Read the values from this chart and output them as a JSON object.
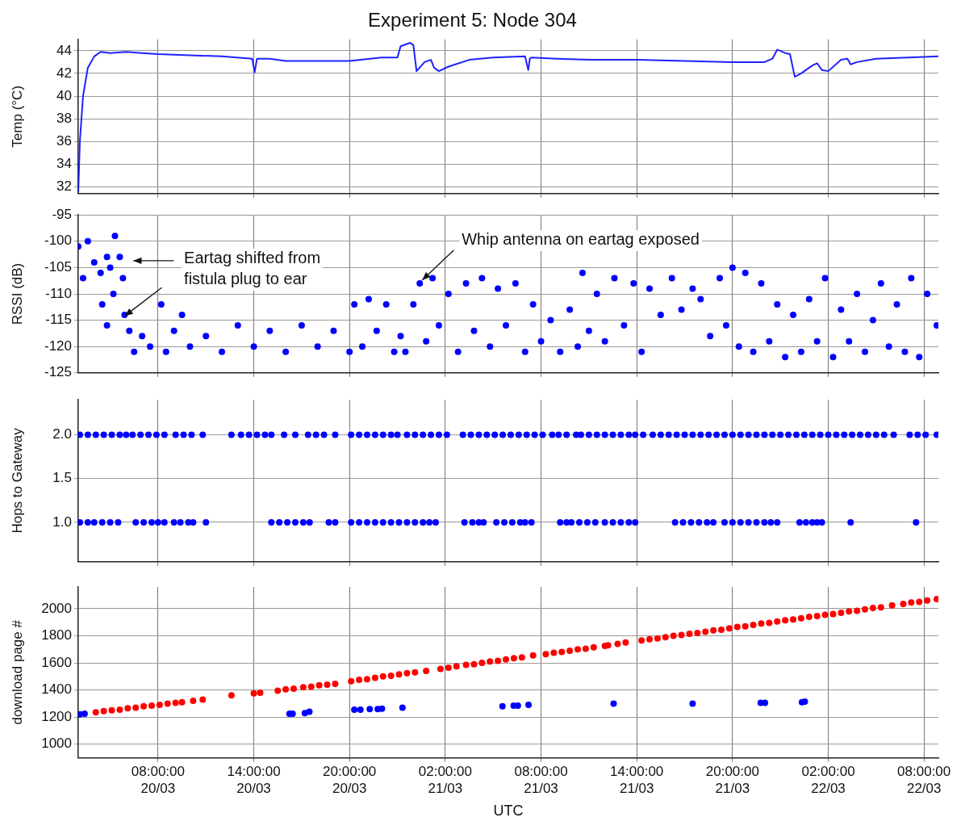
{
  "chart_data": [
    {
      "type": "line",
      "title": "Experiment 5: Node 304",
      "ylabel": "Temp (°C)",
      "xlim": [
        "--03-20T03:00",
        "--03-22T08:54"
      ],
      "xticks": [
        "--03-20T08:00",
        "--03-20T14:00",
        "--03-20T20:00",
        "--03-21T02:00",
        "--03-21T08:00",
        "--03-21T14:00",
        "--03-21T20:00",
        "--03-22T02:00",
        "--03-22T08:00"
      ],
      "ylim": [
        31.4,
        45
      ],
      "yticks": [
        32,
        34,
        36,
        38,
        40,
        42,
        44
      ],
      "grid": true,
      "tick_labels": "y",
      "marker": "none",
      "series": [
        {
          "color": "#2020ff",
          "x": [
            "--03-20T03:00",
            "--03-20T03:06",
            "--03-20T03:18",
            "--03-20T03:36",
            "--03-20T04:00",
            "--03-20T04:24",
            "--03-20T05:00",
            "--03-20T06:00",
            "--03-20T07:00",
            "--03-20T08:00",
            "--03-20T10:00",
            "--03-20T12:00",
            "--03-20T13:54",
            "--03-20T14:03",
            "--03-20T14:12",
            "--03-20T15:00",
            "--03-20T16:00",
            "--03-20T18:00",
            "--03-20T20:00",
            "--03-20T22:00",
            "--03-20T23:00",
            "--03-20T23:12",
            "--03-20T23:48",
            "--03-21T00:00",
            "--03-21T00:12",
            "--03-21T00:42",
            "--03-21T01:06",
            "--03-21T01:18",
            "--03-21T01:36",
            "--03-21T02:12",
            "--03-21T03:30",
            "--03-21T05:00",
            "--03-21T07:00",
            "--03-21T07:12",
            "--03-21T07:18",
            "--03-21T07:24",
            "--03-21T09:00",
            "--03-21T11:00",
            "--03-21T14:00",
            "--03-21T17:00",
            "--03-21T20:00",
            "--03-21T22:00",
            "--03-21T22:30",
            "--03-21T22:48",
            "--03-21T23:18",
            "--03-21T23:36",
            "--03-21T23:54",
            "--03-22T00:18",
            "--03-22T01:00",
            "--03-22T01:18",
            "--03-22T01:36",
            "--03-22T02:00",
            "--03-22T02:48",
            "--03-22T03:12",
            "--03-22T03:24",
            "--03-22T03:48",
            "--03-22T05:00",
            "--03-22T07:00",
            "--03-22T08:54"
          ],
          "values": [
            31.5,
            36,
            40,
            42.5,
            43.5,
            43.9,
            43.8,
            43.9,
            43.8,
            43.7,
            43.6,
            43.5,
            43.3,
            42.1,
            43.3,
            43.3,
            43.1,
            43.1,
            43.1,
            43.4,
            43.4,
            44.4,
            44.7,
            44.5,
            42.2,
            43.0,
            43.2,
            42.5,
            42.2,
            42.6,
            43.2,
            43.4,
            43.5,
            42.3,
            43.3,
            43.4,
            43.3,
            43.2,
            43.2,
            43.1,
            43.0,
            43.0,
            43.3,
            44.1,
            43.8,
            43.7,
            41.7,
            42.0,
            42.7,
            42.9,
            42.3,
            42.2,
            43.2,
            43.3,
            42.8,
            43.0,
            43.3,
            43.4,
            43.5
          ]
        }
      ]
    },
    {
      "type": "scatter",
      "ylabel": "RSSI (dB)",
      "xlim": [
        "--03-20T03:00",
        "--03-22T08:54"
      ],
      "xticks": [
        "--03-20T08:00",
        "--03-20T14:00",
        "--03-20T20:00",
        "--03-21T02:00",
        "--03-21T08:00",
        "--03-21T14:00",
        "--03-21T20:00",
        "--03-22T02:00",
        "--03-22T08:00"
      ],
      "ylim": [
        -125,
        -95
      ],
      "yticks": [
        -125,
        -120,
        -115,
        -110,
        -105,
        -100,
        -95
      ],
      "grid": true,
      "tick_labels": "y",
      "marker": "circle",
      "annotations": [
        "Eartag shifted from fistula plug to ear",
        {
          "text": "Whip antenna on eartag exposed",
          "x": "--03-21T00:24",
          "y": -108
        }
      ],
      "series": [
        {
          "color": "#0000ff",
          "x": [
            "--03-20T03:00",
            "--03-20T03:18",
            "--03-20T03:36",
            "--03-20T04:00",
            "--03-20T04:24",
            "--03-20T04:48",
            "--03-20T05:00",
            "--03-20T05:18",
            "--03-20T05:36",
            "--03-20T05:48",
            "--03-20T04:30",
            "--03-20T04:48",
            "--03-20T05:12",
            "--03-20T05:54",
            "--03-20T06:12",
            "--03-20T06:30",
            "--03-20T07:00",
            "--03-20T07:30",
            "--03-20T08:12",
            "--03-20T08:30",
            "--03-20T09:00",
            "--03-20T09:30",
            "--03-20T10:00",
            "--03-20T11:00",
            "--03-20T12:00",
            "--03-20T13:00",
            "--03-20T14:00",
            "--03-20T15:00",
            "--03-20T16:00",
            "--03-20T17:00",
            "--03-20T18:00",
            "--03-20T19:00",
            "--03-20T20:00",
            "--03-20T20:18",
            "--03-20T20:48",
            "--03-20T21:12",
            "--03-20T21:42",
            "--03-20T22:18",
            "--03-20T22:48",
            "--03-20T23:12",
            "--03-20T23:30",
            "--03-21T00:00",
            "--03-21T00:24",
            "--03-21T00:48",
            "--03-21T01:12",
            "--03-21T01:36",
            "--03-21T02:12",
            "--03-21T02:48",
            "--03-21T03:18",
            "--03-21T03:48",
            "--03-21T04:18",
            "--03-21T04:48",
            "--03-21T05:18",
            "--03-21T05:48",
            "--03-21T06:24",
            "--03-21T07:00",
            "--03-21T07:30",
            "--03-21T08:00",
            "--03-21T08:36",
            "--03-21T09:12",
            "--03-21T09:48",
            "--03-21T10:18",
            "--03-21T10:36",
            "--03-21T11:00",
            "--03-21T11:30",
            "--03-21T12:00",
            "--03-21T12:36",
            "--03-21T13:12",
            "--03-21T13:48",
            "--03-21T14:18",
            "--03-21T14:48",
            "--03-21T15:30",
            "--03-21T16:12",
            "--03-21T16:48",
            "--03-21T17:30",
            "--03-21T18:00",
            "--03-21T18:36",
            "--03-21T19:12",
            "--03-21T19:36",
            "--03-21T20:00",
            "--03-21T20:24",
            "--03-21T20:48",
            "--03-21T21:18",
            "--03-21T21:48",
            "--03-21T22:18",
            "--03-21T22:48",
            "--03-21T23:18",
            "--03-21T23:48",
            "--03-22T00:18",
            "--03-22T00:48",
            "--03-22T01:18",
            "--03-22T01:48",
            "--03-22T02:18",
            "--03-22T02:48",
            "--03-22T03:18",
            "--03-22T03:48",
            "--03-22T04:18",
            "--03-22T04:48",
            "--03-22T05:18",
            "--03-22T05:48",
            "--03-22T06:18",
            "--03-22T06:48",
            "--03-22T07:12",
            "--03-22T07:42",
            "--03-22T08:12",
            "--03-22T08:48"
          ],
          "values": [
            -101,
            -107,
            -100,
            -104,
            -106,
            -103,
            -105,
            -99,
            -103,
            -107,
            -112,
            -116,
            -110,
            -114,
            -117,
            -121,
            -118,
            -120,
            -112,
            -121,
            -117,
            -114,
            -120,
            -118,
            -121,
            -116,
            -120,
            -117,
            -121,
            -116,
            -120,
            -117,
            -121,
            -112,
            -120,
            -111,
            -117,
            -112,
            -121,
            -118,
            -121,
            -112,
            -108,
            -119,
            -107,
            -116,
            -110,
            -121,
            -108,
            -117,
            -107,
            -120,
            -109,
            -116,
            -108,
            -121,
            -112,
            -119,
            -115,
            -121,
            -113,
            -120,
            -106,
            -117,
            -110,
            -119,
            -107,
            -116,
            -108,
            -121,
            -109,
            -114,
            -107,
            -113,
            -109,
            -111,
            -118,
            -107,
            -116,
            -105,
            -120,
            -106,
            -121,
            -108,
            -119,
            -112,
            -122,
            -114,
            -121,
            -111,
            -119,
            -107,
            -122,
            -113,
            -119,
            -110,
            -121,
            -115,
            -108,
            -120,
            -112,
            -121,
            -107,
            -122,
            -110,
            -116
          ]
        }
      ]
    },
    {
      "type": "scatter",
      "ylabel": "Hops to Gateway",
      "xlim": [
        "--03-20T03:00",
        "--03-22T08:54"
      ],
      "xticks": [
        "--03-20T08:00",
        "--03-20T14:00",
        "--03-20T20:00",
        "--03-21T02:00",
        "--03-21T08:00",
        "--03-21T14:00",
        "--03-21T20:00",
        "--03-22T02:00",
        "--03-22T08:00"
      ],
      "ylim": [
        0.55,
        2.4
      ],
      "yticks": [
        {
          "value": 1,
          "label": "1.0"
        },
        {
          "value": 1.5,
          "label": "1.5"
        },
        {
          "value": 2,
          "label": "2.0"
        }
      ],
      "grid": true,
      "tick_labels": "y",
      "marker": "circle",
      "series": [
        {
          "color": "#0000ff",
          "x": [
            "--03-20T03:06",
            "--03-20T03:36",
            "--03-20T04:06",
            "--03-20T04:36",
            "--03-20T05:06",
            "--03-20T05:36",
            "--03-20T06:00",
            "--03-20T06:24",
            "--03-20T06:54",
            "--03-20T07:24",
            "--03-20T07:54",
            "--03-20T08:24",
            "--03-20T09:06",
            "--03-20T09:36",
            "--03-20T10:06",
            "--03-20T10:48",
            "--03-20T12:36",
            "--03-20T13:12",
            "--03-20T13:42",
            "--03-20T14:12",
            "--03-20T14:42",
            "--03-20T15:06",
            "--03-20T15:54",
            "--03-20T16:36",
            "--03-20T17:24",
            "--03-20T17:54",
            "--03-20T18:24",
            "--03-20T19:06",
            "--03-20T20:06",
            "--03-20T20:36",
            "--03-20T21:06",
            "--03-20T21:36",
            "--03-20T22:06",
            "--03-20T22:36",
            "--03-20T23:00",
            "--03-20T23:36",
            "--03-21T00:06",
            "--03-21T00:36",
            "--03-21T01:06",
            "--03-21T01:36",
            "--03-21T02:06",
            "--03-21T03:06",
            "--03-21T03:36",
            "--03-21T04:06",
            "--03-21T04:36",
            "--03-21T05:06",
            "--03-21T05:36",
            "--03-21T06:06",
            "--03-21T06:36",
            "--03-21T07:06",
            "--03-21T07:36",
            "--03-21T08:06",
            "--03-21T08:42",
            "--03-21T09:06",
            "--03-21T09:36",
            "--03-21T10:12",
            "--03-21T10:30",
            "--03-21T11:00",
            "--03-21T11:30",
            "--03-21T12:00",
            "--03-21T12:30",
            "--03-21T13:00",
            "--03-21T13:30",
            "--03-21T13:54",
            "--03-21T14:24",
            "--03-21T15:00",
            "--03-21T15:30",
            "--03-21T16:00",
            "--03-21T16:30",
            "--03-21T17:00",
            "--03-21T17:30",
            "--03-21T18:00",
            "--03-21T18:30",
            "--03-21T19:00",
            "--03-21T19:30",
            "--03-21T20:00",
            "--03-21T20:30",
            "--03-21T21:00",
            "--03-21T21:30",
            "--03-21T22:00",
            "--03-21T22:30",
            "--03-21T23:00",
            "--03-21T23:30",
            "--03-22T00:00",
            "--03-22T00:30",
            "--03-22T01:00",
            "--03-22T01:30",
            "--03-22T02:00",
            "--03-22T02:30",
            "--03-22T03:00",
            "--03-22T03:30",
            "--03-22T04:00",
            "--03-22T04:30",
            "--03-22T05:00",
            "--03-22T05:30",
            "--03-22T06:06",
            "--03-22T07:06",
            "--03-22T07:36",
            "--03-22T08:06",
            "--03-22T08:48"
          ],
          "values": [
            2,
            2,
            2,
            2,
            2,
            2,
            2,
            2,
            2,
            2,
            2,
            2,
            2,
            2,
            2,
            2,
            2,
            2,
            2,
            2,
            2,
            2,
            2,
            2,
            2,
            2,
            2,
            2,
            2,
            2,
            2,
            2,
            2,
            2,
            2,
            2,
            2,
            2,
            2,
            2,
            2,
            2,
            2,
            2,
            2,
            2,
            2,
            2,
            2,
            2,
            2,
            2,
            2,
            2,
            2,
            2,
            2,
            2,
            2,
            2,
            2,
            2,
            2,
            2,
            2,
            2,
            2,
            2,
            2,
            2,
            2,
            2,
            2,
            2,
            2,
            2,
            2,
            2,
            2,
            2,
            2,
            2,
            2,
            2,
            2,
            2,
            2,
            2,
            2,
            2,
            2,
            2,
            2,
            2,
            2,
            2,
            2,
            2,
            2,
            2
          ]
        },
        {
          "color": "#0000ff",
          "x": [
            "--03-20T03:06",
            "--03-20T03:36",
            "--03-20T04:00",
            "--03-20T04:30",
            "--03-20T05:00",
            "--03-20T05:30",
            "--03-20T06:36",
            "--03-20T07:06",
            "--03-20T07:36",
            "--03-20T08:00",
            "--03-20T08:24",
            "--03-20T09:00",
            "--03-20T09:24",
            "--03-20T09:54",
            "--03-20T10:12",
            "--03-20T11:00",
            "--03-20T15:06",
            "--03-20T15:36",
            "--03-20T16:06",
            "--03-20T16:36",
            "--03-20T17:06",
            "--03-20T17:30",
            "--03-20T18:42",
            "--03-20T19:06",
            "--03-20T20:06",
            "--03-20T20:36",
            "--03-20T21:06",
            "--03-20T21:36",
            "--03-20T22:06",
            "--03-20T22:36",
            "--03-20T23:06",
            "--03-20T23:36",
            "--03-21T00:06",
            "--03-21T00:36",
            "--03-21T01:00",
            "--03-21T01:24",
            "--03-21T03:12",
            "--03-21T03:42",
            "--03-21T04:06",
            "--03-21T04:24",
            "--03-21T05:12",
            "--03-21T05:42",
            "--03-21T06:12",
            "--03-21T06:42",
            "--03-21T07:00",
            "--03-21T07:24",
            "--03-21T09:12",
            "--03-21T09:36",
            "--03-21T09:54",
            "--03-21T10:24",
            "--03-21T10:54",
            "--03-21T11:24",
            "--03-21T12:00",
            "--03-21T12:30",
            "--03-21T13:00",
            "--03-21T13:30",
            "--03-21T13:54",
            "--03-21T16:24",
            "--03-21T16:54",
            "--03-21T17:24",
            "--03-21T17:54",
            "--03-21T18:24",
            "--03-21T18:48",
            "--03-21T19:30",
            "--03-21T20:00",
            "--03-21T20:30",
            "--03-21T21:00",
            "--03-21T21:30",
            "--03-21T22:00",
            "--03-21T22:24",
            "--03-21T22:48",
            "--03-22T00:12",
            "--03-22T00:36",
            "--03-22T01:00",
            "--03-22T01:18",
            "--03-22T01:36",
            "--03-22T03:24",
            "--03-22T07:30"
          ],
          "values": [
            1,
            1,
            1,
            1,
            1,
            1,
            1,
            1,
            1,
            1,
            1,
            1,
            1,
            1,
            1,
            1,
            1,
            1,
            1,
            1,
            1,
            1,
            1,
            1,
            1,
            1,
            1,
            1,
            1,
            1,
            1,
            1,
            1,
            1,
            1,
            1,
            1,
            1,
            1,
            1,
            1,
            1,
            1,
            1,
            1,
            1,
            1,
            1,
            1,
            1,
            1,
            1,
            1,
            1,
            1,
            1,
            1,
            1,
            1,
            1,
            1,
            1,
            1,
            1,
            1,
            1,
            1,
            1,
            1,
            1,
            1,
            1,
            1,
            1,
            1,
            1,
            1,
            1
          ]
        }
      ]
    },
    {
      "type": "scatter",
      "xlabel": "UTC",
      "ylabel": "download page #",
      "xlim": [
        "--03-20T03:00",
        "--03-22T08:54"
      ],
      "xticks": [
        {
          "value": "--03-20T08:00",
          "label": "08:00:00 20/03"
        },
        {
          "value": "--03-20T14:00",
          "label": "14:00:00 20/03"
        },
        {
          "value": "--03-20T20:00",
          "label": "20:00:00 20/03"
        },
        {
          "value": "--03-21T02:00",
          "label": "02:00:00 21/03"
        },
        {
          "value": "--03-21T08:00",
          "label": "08:00:00 21/03"
        },
        {
          "value": "--03-21T14:00",
          "label": "14:00:00 21/03"
        },
        {
          "value": "--03-21T20:00",
          "label": "20:00:00 21/03"
        },
        {
          "value": "--03-22T02:00",
          "label": "02:00:00 22/03"
        },
        {
          "value": "--03-22T08:00",
          "label": "08:00:00 22/03"
        }
      ],
      "ylim": [
        900,
        2160
      ],
      "yticks": [
        1000,
        1200,
        1400,
        1600,
        1800,
        2000
      ],
      "grid": true,
      "marker": "circle",
      "series": [
        {
          "color": "#ff0000",
          "x": [
            "--03-20T04:06",
            "--03-20T04:36",
            "--03-20T05:06",
            "--03-20T05:36",
            "--03-20T06:06",
            "--03-20T06:36",
            "--03-20T07:06",
            "--03-20T07:36",
            "--03-20T08:06",
            "--03-20T08:36",
            "--03-20T09:06",
            "--03-20T09:30",
            "--03-20T10:12",
            "--03-20T10:48",
            "--03-20T12:36",
            "--03-20T14:00",
            "--03-20T14:24",
            "--03-20T15:30",
            "--03-20T16:00",
            "--03-20T16:30",
            "--03-20T17:06",
            "--03-20T17:36",
            "--03-20T18:06",
            "--03-20T18:36",
            "--03-20T19:06",
            "--03-20T20:06",
            "--03-20T20:36",
            "--03-20T21:06",
            "--03-20T21:36",
            "--03-20T22:06",
            "--03-20T22:36",
            "--03-20T23:06",
            "--03-20T23:36",
            "--03-21T00:06",
            "--03-21T00:48",
            "--03-21T01:42",
            "--03-21T02:12",
            "--03-21T02:42",
            "--03-21T03:18",
            "--03-21T03:48",
            "--03-21T04:18",
            "--03-21T04:48",
            "--03-21T05:18",
            "--03-21T05:48",
            "--03-21T06:18",
            "--03-21T06:48",
            "--03-21T07:30",
            "--03-21T08:18",
            "--03-21T08:48",
            "--03-21T09:18",
            "--03-21T09:48",
            "--03-21T10:18",
            "--03-21T10:48",
            "--03-21T11:18",
            "--03-21T12:00",
            "--03-21T12:12",
            "--03-21T12:48",
            "--03-21T13:18",
            "--03-21T14:18",
            "--03-21T14:48",
            "--03-21T15:18",
            "--03-21T15:48",
            "--03-21T16:18",
            "--03-21T16:48",
            "--03-21T17:18",
            "--03-21T17:48",
            "--03-21T18:18",
            "--03-21T18:48",
            "--03-21T19:18",
            "--03-21T19:48",
            "--03-21T20:18",
            "--03-21T20:48",
            "--03-21T21:18",
            "--03-21T21:48",
            "--03-21T22:18",
            "--03-21T22:48",
            "--03-21T23:18",
            "--03-21T23:48",
            "--03-22T00:18",
            "--03-22T00:48",
            "--03-22T01:18",
            "--03-22T01:48",
            "--03-22T02:18",
            "--03-22T02:48",
            "--03-22T03:18",
            "--03-22T03:48",
            "--03-22T04:18",
            "--03-22T04:48",
            "--03-22T05:18",
            "--03-22T06:00",
            "--03-22T06:42",
            "--03-22T07:12",
            "--03-22T07:42",
            "--03-22T08:12",
            "--03-22T08:48"
          ],
          "values": [
            1235,
            1245,
            1250,
            1255,
            1265,
            1270,
            1280,
            1285,
            1290,
            1300,
            1305,
            1310,
            1320,
            1330,
            1360,
            1375,
            1380,
            1395,
            1405,
            1410,
            1420,
            1425,
            1435,
            1440,
            1445,
            1465,
            1475,
            1480,
            1490,
            1500,
            1505,
            1515,
            1525,
            1530,
            1540,
            1555,
            1565,
            1575,
            1585,
            1590,
            1600,
            1610,
            1615,
            1625,
            1635,
            1640,
            1655,
            1665,
            1675,
            1680,
            1690,
            1700,
            1705,
            1715,
            1725,
            1730,
            1740,
            1750,
            1765,
            1775,
            1780,
            1790,
            1800,
            1805,
            1815,
            1820,
            1830,
            1840,
            1845,
            1855,
            1865,
            1870,
            1880,
            1890,
            1895,
            1905,
            1915,
            1920,
            1930,
            1940,
            1945,
            1955,
            1960,
            1970,
            1980,
            1985,
            1995,
            2005,
            2010,
            2025,
            2035,
            2045,
            2050,
            2060,
            2070
          ]
        },
        {
          "color": "#0000ff",
          "x": [
            "--03-20T03:06",
            "--03-20T03:24",
            "--03-20T16:14",
            "--03-20T16:26",
            "--03-20T17:12",
            "--03-20T17:29",
            "--03-20T20:18",
            "--03-20T20:41",
            "--03-20T21:16",
            "--03-20T21:46",
            "--03-20T22:02",
            "--03-20T23:19",
            "--03-21T05:35",
            "--03-21T06:17",
            "--03-21T06:33",
            "--03-21T07:13",
            "--03-21T12:33",
            "--03-21T17:30",
            "--03-21T21:46",
            "--03-21T22:02",
            "--03-22T00:21",
            "--03-22T00:32"
          ],
          "values": [
            1220,
            1225,
            1225,
            1225,
            1230,
            1240,
            1255,
            1255,
            1260,
            1260,
            1262,
            1270,
            1280,
            1285,
            1285,
            1290,
            1300,
            1300,
            1305,
            1305,
            1310,
            1315
          ]
        }
      ]
    }
  ]
}
